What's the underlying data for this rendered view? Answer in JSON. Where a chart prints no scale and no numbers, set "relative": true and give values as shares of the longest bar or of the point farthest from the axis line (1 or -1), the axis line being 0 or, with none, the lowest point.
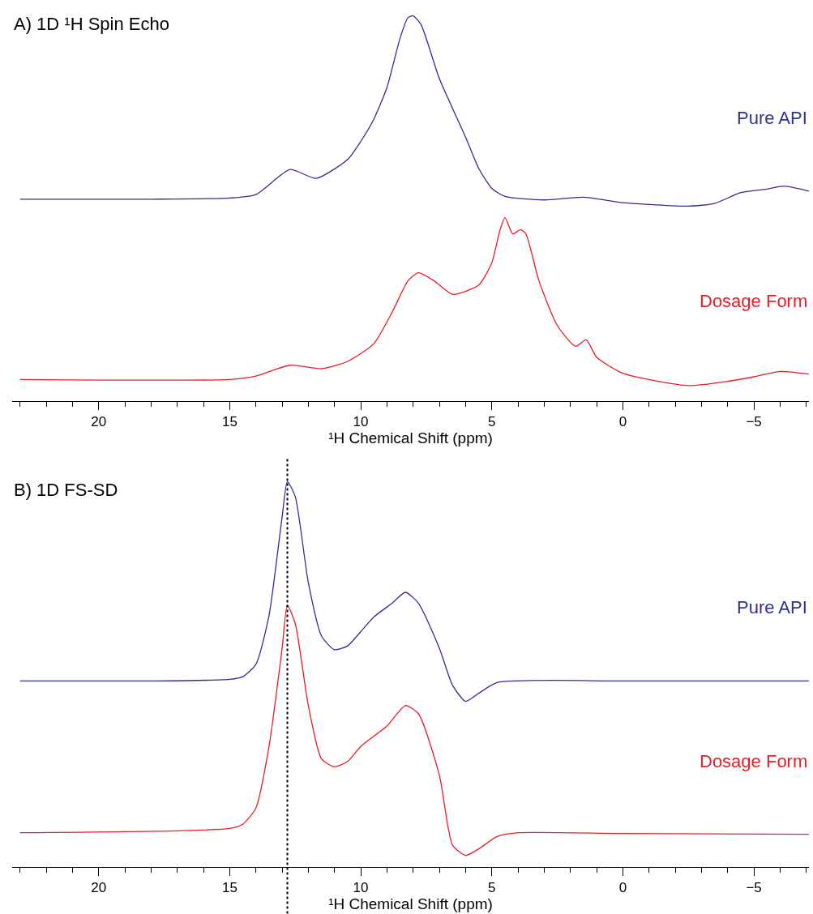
{
  "chart_data": [
    {
      "type": "line",
      "title": "A) 1D ¹H Spin Echo",
      "xlabel": "¹H Chemical Shift (ppm)",
      "relative": true,
      "legend": false,
      "marker": "none",
      "line_style": "solid",
      "xlim": [
        23.3,
        -7.1
      ],
      "xticks": [
        {
          "value": 23,
          "label": null
        },
        {
          "value": 22,
          "label": null
        },
        {
          "value": 21,
          "label": null
        },
        20,
        {
          "value": 19,
          "label": null
        },
        {
          "value": 18,
          "label": null
        },
        {
          "value": 17,
          "label": null
        },
        {
          "value": 16,
          "label": null
        },
        15,
        {
          "value": 14,
          "label": null
        },
        {
          "value": 13,
          "label": null
        },
        {
          "value": 12,
          "label": null
        },
        {
          "value": 11,
          "label": null
        },
        10,
        {
          "value": 9,
          "label": null
        },
        {
          "value": 8,
          "label": null
        },
        {
          "value": 7,
          "label": null
        },
        {
          "value": 6,
          "label": null
        },
        5,
        {
          "value": 4,
          "label": null
        },
        {
          "value": 3,
          "label": null
        },
        {
          "value": 2,
          "label": null
        },
        {
          "value": 1,
          "label": null
        },
        0,
        {
          "value": -1,
          "label": null
        },
        {
          "value": -2,
          "label": null
        },
        {
          "value": -3,
          "label": null
        },
        {
          "value": -4,
          "label": null
        },
        {
          "value": -5,
          "label": "−5"
        },
        {
          "value": -6,
          "label": null
        },
        {
          "value": -7,
          "label": null
        }
      ],
      "series": [
        {
          "name": "Pure API",
          "color": "#2e3192",
          "x": [
            23,
            18,
            15,
            14,
            12.7,
            11.7,
            10.5,
            10,
            9.5,
            9,
            8.5,
            8.2,
            8.0,
            7.7,
            7,
            6,
            5.5,
            5,
            4.5,
            3,
            1.5,
            0,
            -2.5,
            -3.5,
            -4.5,
            -5.5,
            -6,
            -6.3,
            -7.1
          ],
          "values": [
            0.524,
            0.524,
            0.527,
            0.536,
            0.601,
            0.578,
            0.627,
            0.674,
            0.732,
            0.814,
            0.942,
            0.995,
            1.0,
            0.977,
            0.837,
            0.685,
            0.604,
            0.552,
            0.531,
            0.522,
            0.529,
            0.515,
            0.506,
            0.513,
            0.541,
            0.55,
            0.557,
            0.557,
            0.545
          ]
        },
        {
          "name": "Dosage Form",
          "color": "#ed1c24",
          "x": [
            23,
            15,
            14,
            12.7,
            11.5,
            10.5,
            9.5,
            8.8,
            8.2,
            7.8,
            7.2,
            6.5,
            5.5,
            5,
            4.7,
            4.5,
            4.2,
            3.9,
            3.7,
            3.2,
            2.5,
            1.8,
            1.4,
            1.0,
            0,
            -2.5,
            -4,
            -5,
            -6,
            -7.1
          ],
          "values": [
            0.056,
            0.056,
            0.065,
            0.093,
            0.084,
            0.103,
            0.149,
            0.231,
            0.312,
            0.333,
            0.312,
            0.277,
            0.301,
            0.359,
            0.441,
            0.476,
            0.434,
            0.445,
            0.434,
            0.312,
            0.196,
            0.142,
            0.159,
            0.114,
            0.072,
            0.04,
            0.051,
            0.063,
            0.077,
            0.07
          ]
        }
      ]
    },
    {
      "type": "line",
      "title": "B) 1D FS-SD",
      "xlabel": "¹H Chemical Shift (ppm)",
      "relative": true,
      "legend": false,
      "marker": "none",
      "line_style": "solid",
      "xlim": [
        23.3,
        -7.1
      ],
      "xticks": [
        {
          "value": 23,
          "label": null
        },
        {
          "value": 22,
          "label": null
        },
        {
          "value": 21,
          "label": null
        },
        20,
        {
          "value": 19,
          "label": null
        },
        {
          "value": 18,
          "label": null
        },
        {
          "value": 17,
          "label": null
        },
        {
          "value": 16,
          "label": null
        },
        15,
        {
          "value": 14,
          "label": null
        },
        {
          "value": 13,
          "label": null
        },
        {
          "value": 12,
          "label": null
        },
        {
          "value": 11,
          "label": null
        },
        10,
        {
          "value": 9,
          "label": null
        },
        {
          "value": 8,
          "label": null
        },
        {
          "value": 7,
          "label": null
        },
        {
          "value": 6,
          "label": null
        },
        5,
        {
          "value": 4,
          "label": null
        },
        {
          "value": 3,
          "label": null
        },
        {
          "value": 2,
          "label": null
        },
        {
          "value": 1,
          "label": null
        },
        0,
        {
          "value": -1,
          "label": null
        },
        {
          "value": -2,
          "label": null
        },
        {
          "value": -3,
          "label": null
        },
        {
          "value": -4,
          "label": null
        },
        {
          "value": -5,
          "label": "−5"
        },
        {
          "value": -6,
          "label": null
        },
        {
          "value": -7,
          "label": null
        }
      ],
      "ref_lines": [
        {
          "axis": "x",
          "value": 12.8,
          "color": "#000000",
          "line_style": "dotted"
        }
      ],
      "series": [
        {
          "name": "Pure API",
          "color": "#2e3192",
          "x": [
            23,
            18,
            15,
            14.5,
            14,
            13.5,
            13,
            12.8,
            12.5,
            12,
            11.5,
            11,
            10.5,
            10,
            9.5,
            8.8,
            8.3,
            7.8,
            7,
            6.5,
            6,
            5.5,
            4.8,
            0,
            -7.1
          ],
          "values": [
            0.483,
            0.483,
            0.487,
            0.494,
            0.526,
            0.653,
            0.909,
            1.0,
            0.962,
            0.738,
            0.6,
            0.564,
            0.574,
            0.611,
            0.649,
            0.685,
            0.713,
            0.685,
            0.568,
            0.472,
            0.43,
            0.451,
            0.479,
            0.483,
            0.483
          ]
        },
        {
          "name": "Dosage Form",
          "color": "#ed1c24",
          "x": [
            23,
            17,
            15,
            14.5,
            14,
            13.5,
            13,
            12.8,
            12.5,
            12,
            11.5,
            11,
            10.5,
            10,
            9,
            8.3,
            7.8,
            7,
            6.5,
            6,
            5.5,
            4.8,
            4,
            0,
            -7.1
          ],
          "values": [
            0.089,
            0.094,
            0.1,
            0.111,
            0.153,
            0.313,
            0.568,
            0.679,
            0.632,
            0.419,
            0.281,
            0.26,
            0.274,
            0.313,
            0.366,
            0.419,
            0.398,
            0.238,
            0.057,
            0.03,
            0.047,
            0.079,
            0.089,
            0.087,
            0.085
          ]
        }
      ]
    }
  ]
}
